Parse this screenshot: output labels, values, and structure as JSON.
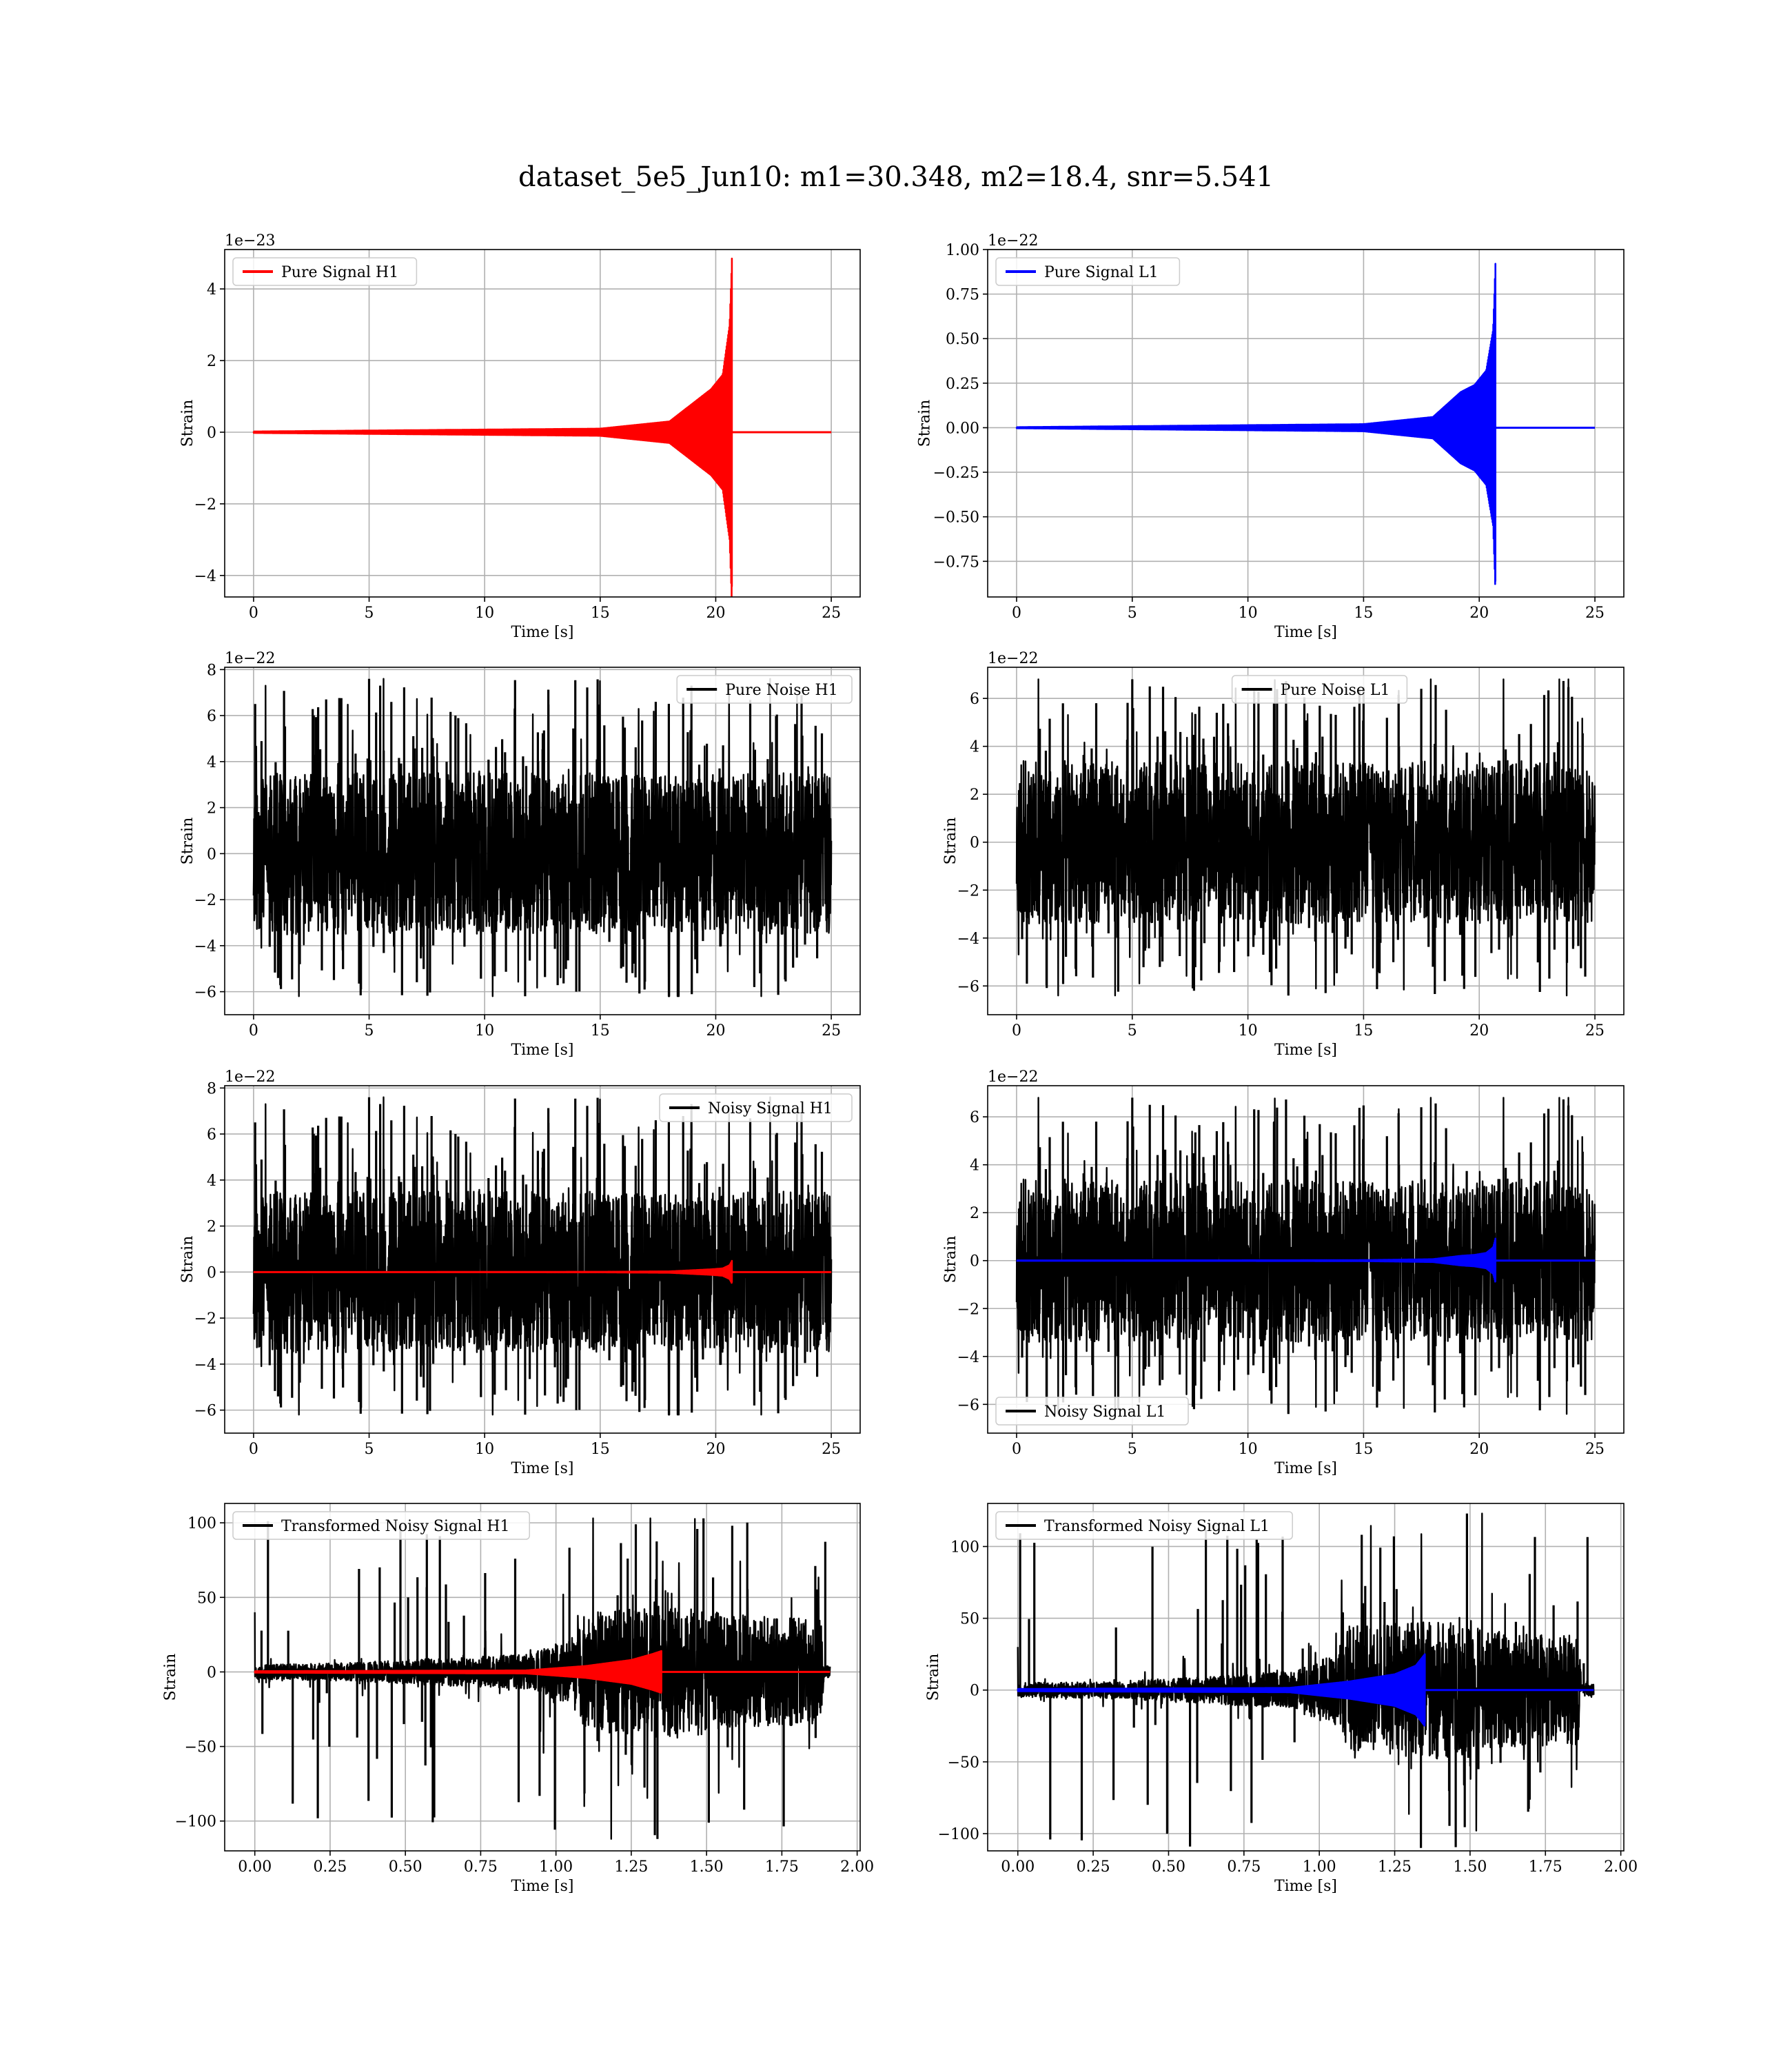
{
  "figure": {
    "title": "dataset_5e5_Jun10: m1=30.348, m2=18.4, snr=5.541"
  },
  "colors": {
    "h1_signal": "#ff0000",
    "l1_signal": "#0000ff",
    "noise": "#000000",
    "grid": "#b0b0b0"
  },
  "chart_data": [
    {
      "id": "pure-signal-h1",
      "type": "line",
      "xlabel": "Time [s]",
      "ylabel": "Strain",
      "offset_text": "1e−23",
      "xlim": [
        -1.25,
        26.25
      ],
      "ylim": [
        -4.6,
        5.1
      ],
      "xticks": [
        0,
        5,
        10,
        15,
        20,
        25
      ],
      "xtick_labels": [
        "0",
        "5",
        "10",
        "15",
        "20",
        "25"
      ],
      "yticks": [
        -4,
        -2,
        0,
        2,
        4
      ],
      "ytick_labels": [
        "−4",
        "−2",
        "0",
        "2",
        "4"
      ],
      "legend": {
        "position": "upper-left",
        "entries": [
          {
            "label": "Pure Signal H1",
            "color": "#ff0000"
          }
        ]
      },
      "grid": true,
      "series": [
        {
          "name": "Pure Signal H1",
          "color": "#ff0000",
          "kind": "chirp",
          "t_start": 0,
          "t_merge": 20.7,
          "t_end": 25,
          "envelope": [
            [
              0,
              0.02
            ],
            [
              15,
              0.1
            ],
            [
              18,
              0.3
            ],
            [
              19.2,
              0.9
            ],
            [
              19.8,
              1.2
            ],
            [
              20.3,
              1.6
            ],
            [
              20.6,
              3.0
            ],
            [
              20.7,
              4.85
            ]
          ],
          "lower_peak": -4.3
        }
      ]
    },
    {
      "id": "pure-signal-l1",
      "type": "line",
      "xlabel": "Time [s]",
      "ylabel": "Strain",
      "offset_text": "1e−22",
      "xlim": [
        -1.25,
        26.25
      ],
      "ylim": [
        -0.95,
        1.0
      ],
      "xticks": [
        0,
        5,
        10,
        15,
        20,
        25
      ],
      "xtick_labels": [
        "0",
        "5",
        "10",
        "15",
        "20",
        "25"
      ],
      "yticks": [
        -0.75,
        -0.5,
        -0.25,
        0,
        0.25,
        0.5,
        0.75,
        1.0
      ],
      "ytick_labels": [
        "−0.75",
        "−0.50",
        "−0.25",
        "0.00",
        "0.25",
        "0.50",
        "0.75",
        "1.00"
      ],
      "legend": {
        "position": "upper-left",
        "entries": [
          {
            "label": "Pure Signal L1",
            "color": "#0000ff"
          }
        ]
      },
      "grid": true,
      "series": [
        {
          "name": "Pure Signal L1",
          "color": "#0000ff",
          "kind": "chirp",
          "t_start": 0,
          "t_merge": 20.7,
          "t_end": 25,
          "envelope": [
            [
              0,
              0.003
            ],
            [
              15,
              0.02
            ],
            [
              18,
              0.06
            ],
            [
              19.2,
              0.2
            ],
            [
              19.8,
              0.24
            ],
            [
              20.3,
              0.32
            ],
            [
              20.6,
              0.55
            ],
            [
              20.7,
              0.92
            ]
          ],
          "lower_peak": -0.86
        }
      ]
    },
    {
      "id": "pure-noise-h1",
      "type": "line",
      "xlabel": "Time [s]",
      "ylabel": "Strain",
      "offset_text": "1e−22",
      "xlim": [
        -1.25,
        26.25
      ],
      "ylim": [
        -7.0,
        8.1
      ],
      "xticks": [
        0,
        5,
        10,
        15,
        20,
        25
      ],
      "xtick_labels": [
        "0",
        "5",
        "10",
        "15",
        "20",
        "25"
      ],
      "yticks": [
        -6,
        -4,
        -2,
        0,
        2,
        4,
        6,
        8
      ],
      "ytick_labels": [
        "−6",
        "−4",
        "−2",
        "0",
        "2",
        "4",
        "6",
        "8"
      ],
      "legend": {
        "position": "upper-right",
        "entries": [
          {
            "label": "Pure Noise H1",
            "color": "#000000"
          }
        ]
      },
      "grid": true,
      "series": [
        {
          "name": "Pure Noise H1",
          "color": "#000000",
          "kind": "noise",
          "t_start": 0,
          "t_end": 25,
          "band": 3.5,
          "max": 7.6,
          "min": -6.2,
          "seed": 11
        }
      ]
    },
    {
      "id": "pure-noise-l1",
      "type": "line",
      "xlabel": "Time [s]",
      "ylabel": "Strain",
      "offset_text": "1e−22",
      "xlim": [
        -1.25,
        26.25
      ],
      "ylim": [
        -7.2,
        7.3
      ],
      "xticks": [
        0,
        5,
        10,
        15,
        20,
        25
      ],
      "xtick_labels": [
        "0",
        "5",
        "10",
        "15",
        "20",
        "25"
      ],
      "yticks": [
        -6,
        -4,
        -2,
        0,
        2,
        4,
        6
      ],
      "ytick_labels": [
        "−6",
        "−4",
        "−2",
        "0",
        "2",
        "4",
        "6"
      ],
      "legend": {
        "position": "upper-center",
        "entries": [
          {
            "label": "Pure Noise L1",
            "color": "#000000"
          }
        ]
      },
      "grid": true,
      "series": [
        {
          "name": "Pure Noise L1",
          "color": "#000000",
          "kind": "noise",
          "t_start": 0,
          "t_end": 25,
          "band": 3.4,
          "max": 6.8,
          "min": -6.4,
          "seed": 23
        }
      ]
    },
    {
      "id": "noisy-signal-h1",
      "type": "line",
      "xlabel": "Time [s]",
      "ylabel": "Strain",
      "offset_text": "1e−22",
      "xlim": [
        -1.25,
        26.25
      ],
      "ylim": [
        -7.0,
        8.1
      ],
      "xticks": [
        0,
        5,
        10,
        15,
        20,
        25
      ],
      "xtick_labels": [
        "0",
        "5",
        "10",
        "15",
        "20",
        "25"
      ],
      "yticks": [
        -6,
        -4,
        -2,
        0,
        2,
        4,
        6,
        8
      ],
      "ytick_labels": [
        "−6",
        "−4",
        "−2",
        "0",
        "2",
        "4",
        "6",
        "8"
      ],
      "legend": {
        "position": "upper-right",
        "entries": [
          {
            "label": "Noisy Signal H1",
            "color": "#000000"
          }
        ]
      },
      "grid": true,
      "series": [
        {
          "name": "Noisy Signal H1",
          "color": "#000000",
          "kind": "noise",
          "t_start": 0,
          "t_end": 25,
          "band": 3.5,
          "max": 7.6,
          "min": -6.2,
          "seed": 11
        },
        {
          "color": "#ff0000",
          "kind": "chirp",
          "t_start": 0,
          "t_merge": 20.7,
          "t_end": 25,
          "envelope": [
            [
              0,
              0.002
            ],
            [
              15,
              0.01
            ],
            [
              18,
              0.03
            ],
            [
              19.2,
              0.09
            ],
            [
              19.8,
              0.12
            ],
            [
              20.3,
              0.16
            ],
            [
              20.6,
              0.3
            ],
            [
              20.7,
              0.49
            ]
          ],
          "lower_peak": -0.43
        }
      ]
    },
    {
      "id": "noisy-signal-l1",
      "type": "line",
      "xlabel": "Time [s]",
      "ylabel": "Strain",
      "offset_text": "1e−22",
      "xlim": [
        -1.25,
        26.25
      ],
      "ylim": [
        -7.2,
        7.3
      ],
      "xticks": [
        0,
        5,
        10,
        15,
        20,
        25
      ],
      "xtick_labels": [
        "0",
        "5",
        "10",
        "15",
        "20",
        "25"
      ],
      "yticks": [
        -6,
        -4,
        -2,
        0,
        2,
        4,
        6
      ],
      "ytick_labels": [
        "−6",
        "−4",
        "−2",
        "0",
        "2",
        "4",
        "6"
      ],
      "legend": {
        "position": "lower-left",
        "entries": [
          {
            "label": "Noisy Signal L1",
            "color": "#000000"
          }
        ]
      },
      "grid": true,
      "series": [
        {
          "name": "Noisy Signal L1",
          "color": "#000000",
          "kind": "noise",
          "t_start": 0,
          "t_end": 25,
          "band": 3.4,
          "max": 6.8,
          "min": -6.4,
          "seed": 23
        },
        {
          "color": "#0000ff",
          "kind": "chirp",
          "t_start": 0,
          "t_merge": 20.7,
          "t_end": 25,
          "envelope": [
            [
              0,
              0.003
            ],
            [
              15,
              0.02
            ],
            [
              18,
              0.06
            ],
            [
              19.2,
              0.2
            ],
            [
              19.8,
              0.24
            ],
            [
              20.3,
              0.32
            ],
            [
              20.6,
              0.55
            ],
            [
              20.7,
              0.92
            ]
          ],
          "lower_peak": -0.86
        }
      ]
    },
    {
      "id": "transformed-noisy-signal-h1",
      "type": "line",
      "xlabel": "Time [s]",
      "ylabel": "Strain",
      "offset_text": "",
      "xlim": [
        -0.1,
        2.01
      ],
      "ylim": [
        -120,
        113
      ],
      "xticks": [
        0,
        0.25,
        0.5,
        0.75,
        1.0,
        1.25,
        1.5,
        1.75,
        2.0
      ],
      "xtick_labels": [
        "0.00",
        "0.25",
        "0.50",
        "0.75",
        "1.00",
        "1.25",
        "1.50",
        "1.75",
        "2.00"
      ],
      "yticks": [
        -100,
        -50,
        0,
        50,
        100
      ],
      "ytick_labels": [
        "−100",
        "−50",
        "0",
        "50",
        "100"
      ],
      "legend": {
        "position": "upper-left",
        "entries": [
          {
            "label": "Transformed Noisy Signal H1",
            "color": "#000000"
          }
        ]
      },
      "grid": true,
      "series": [
        {
          "name": "Transformed Noisy Signal H1",
          "color": "#000000",
          "kind": "noise_profile",
          "t_start": 0,
          "t_end": 1.91,
          "seed": 37,
          "profile": [
            [
              0,
              5
            ],
            [
              0.3,
              6
            ],
            [
              0.6,
              9
            ],
            [
              0.9,
              12
            ],
            [
              1.05,
              22
            ],
            [
              1.1,
              40
            ],
            [
              1.4,
              45
            ],
            [
              1.6,
              38
            ],
            [
              1.88,
              35
            ],
            [
              1.89,
              4
            ],
            [
              1.91,
              4
            ]
          ],
          "max": 103,
          "min": -112,
          "spike_t0": 40
        },
        {
          "color": "#ff0000",
          "kind": "chirp",
          "t_start": 0,
          "t_merge": 1.35,
          "t_end": 1.91,
          "envelope": [
            [
              0,
              0.5
            ],
            [
              0.9,
              1.0
            ],
            [
              1.1,
              4
            ],
            [
              1.25,
              8
            ],
            [
              1.32,
              12
            ],
            [
              1.35,
              14
            ]
          ],
          "lower_peak": -13
        }
      ]
    },
    {
      "id": "transformed-noisy-signal-l1",
      "type": "line",
      "xlabel": "Time [s]",
      "ylabel": "Strain",
      "offset_text": "",
      "xlim": [
        -0.1,
        2.01
      ],
      "ylim": [
        -112,
        130
      ],
      "xticks": [
        0,
        0.25,
        0.5,
        0.75,
        1.0,
        1.25,
        1.5,
        1.75,
        2.0
      ],
      "xtick_labels": [
        "0.00",
        "0.25",
        "0.50",
        "0.75",
        "1.00",
        "1.25",
        "1.50",
        "1.75",
        "2.00"
      ],
      "yticks": [
        -100,
        -50,
        0,
        50,
        100
      ],
      "ytick_labels": [
        "−100",
        "−50",
        "0",
        "50",
        "100"
      ],
      "legend": {
        "position": "upper-left",
        "entries": [
          {
            "label": "Transformed Noisy Signal L1",
            "color": "#000000"
          }
        ]
      },
      "grid": true,
      "series": [
        {
          "name": "Transformed Noisy Signal L1",
          "color": "#000000",
          "kind": "noise_profile",
          "t_start": 0,
          "t_end": 1.91,
          "seed": 53,
          "profile": [
            [
              0,
              5
            ],
            [
              0.3,
              6
            ],
            [
              0.6,
              9
            ],
            [
              0.9,
              13
            ],
            [
              1.05,
              25
            ],
            [
              1.1,
              45
            ],
            [
              1.4,
              48
            ],
            [
              1.6,
              40
            ],
            [
              1.86,
              38
            ],
            [
              1.87,
              4
            ],
            [
              1.91,
              4
            ]
          ],
          "max": 123,
          "min": -110,
          "spike_t0": 30
        },
        {
          "color": "#0000ff",
          "kind": "chirp",
          "t_start": 0,
          "t_merge": 1.35,
          "t_end": 1.91,
          "envelope": [
            [
              0,
              0.8
            ],
            [
              0.9,
              1.5
            ],
            [
              1.1,
              6
            ],
            [
              1.25,
              11
            ],
            [
              1.32,
              17
            ],
            [
              1.35,
              25
            ]
          ],
          "lower_peak": -22
        }
      ]
    }
  ]
}
